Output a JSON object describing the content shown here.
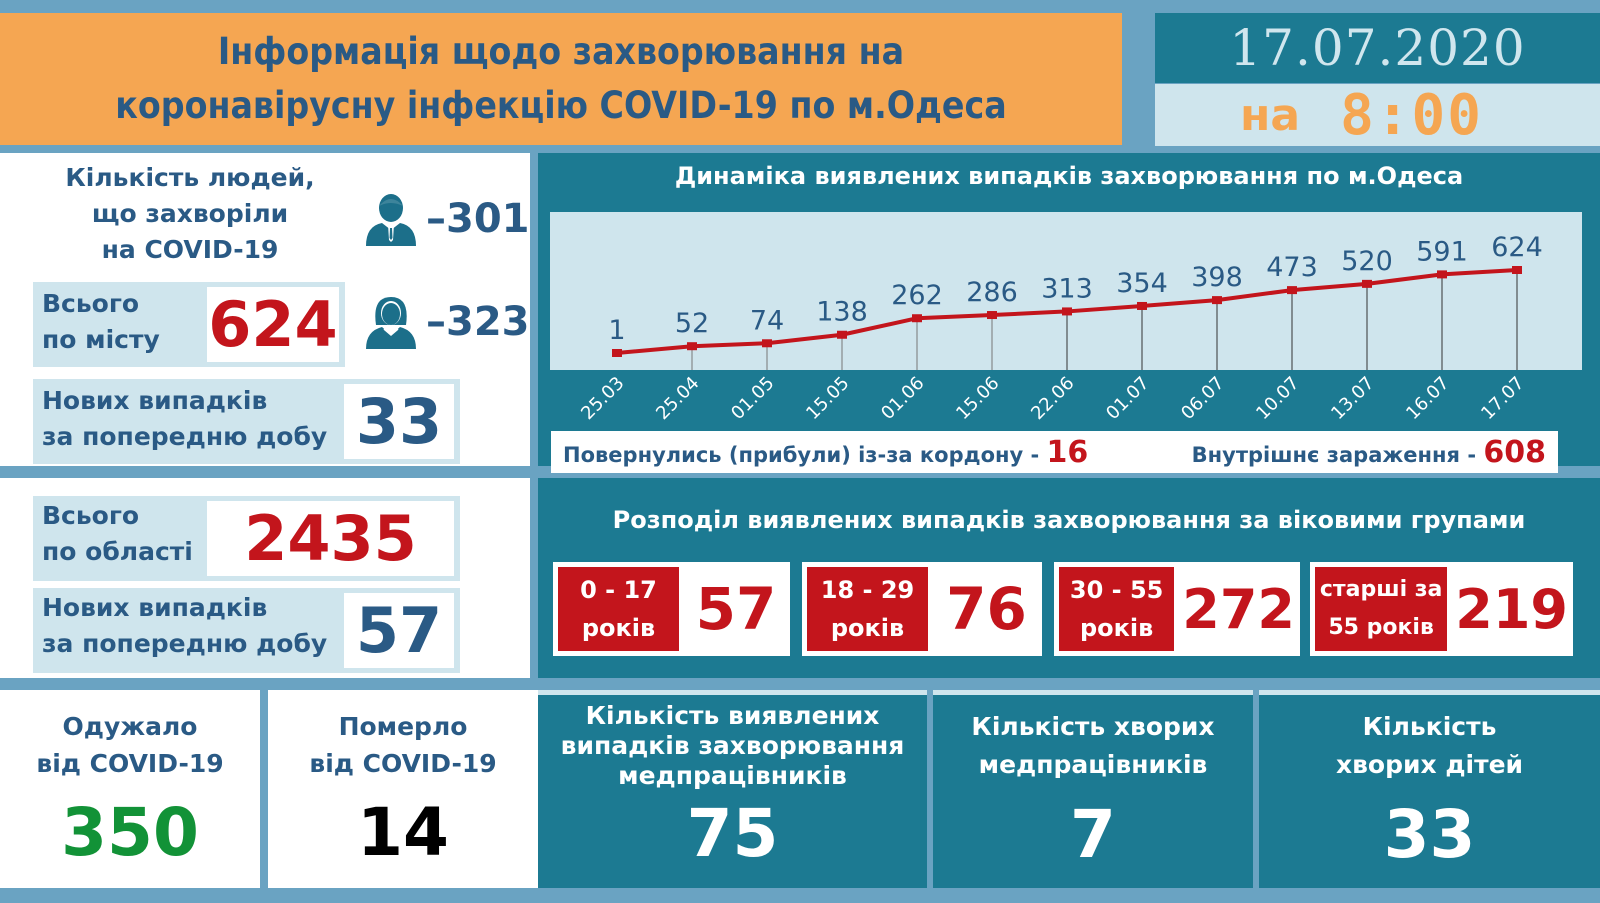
{
  "header": {
    "title_line1": "Інформація щодо захворювання на",
    "title_line2": "коронавірусну інфекцію COVID-19 по м.Одеса",
    "date": "17.07.2020",
    "time_prefix": "на",
    "time": "8:00"
  },
  "city": {
    "sick_title_line1": "Кількість людей,",
    "sick_title_line2": "що захворіли",
    "sick_title_line3": "на COVID-19",
    "male_icon": "male-person-icon",
    "male_count": "–301",
    "female_icon": "female-person-icon",
    "female_count": "–323",
    "total_label_line1": "Всього",
    "total_label_line2": "по місту",
    "total_value": "624",
    "new_label_line1": "Нових випадків",
    "new_label_line2": "за попередню добу",
    "new_value": "33"
  },
  "region": {
    "total_label_line1": "Всього",
    "total_label_line2": "по області",
    "total_value": "2435",
    "new_label_line1": "Нових випадків",
    "new_label_line2": "за попередню добу",
    "new_value": "57"
  },
  "recovered": {
    "label_line1": "Одужало",
    "label_line2": "від COVID-19",
    "value": "350"
  },
  "deceased": {
    "label_line1": "Померло",
    "label_line2": "від COVID-19",
    "value": "14"
  },
  "chart": {
    "title": "Динаміка виявлених випадків захворювання по м.Одеса",
    "border_label": "Повернулись (прибули) із-за кордону -",
    "border_value": "16",
    "internal_label": "Внутрішнє зараження  -",
    "internal_value": "608"
  },
  "chart_data": {
    "type": "line",
    "title": "Динаміка виявлених випадків захворювання по м.Одеса",
    "categories": [
      "25.03",
      "25.04",
      "01.05",
      "15.05",
      "01.06",
      "15.06",
      "22.06",
      "01.07",
      "06.07",
      "10.07",
      "13.07",
      "16.07",
      "17.07"
    ],
    "values": [
      1,
      52,
      74,
      138,
      262,
      286,
      313,
      354,
      398,
      473,
      520,
      591,
      624
    ],
    "xlabel": "",
    "ylabel": "",
    "ylim": [
      0,
      1200
    ],
    "grid": false,
    "data_labels": true,
    "line_color": "#c3151c",
    "x_tick_rotation": -45
  },
  "age_groups": {
    "title": "Розподіл виявлених випадків захворювання за віковими групами",
    "groups": [
      {
        "label_line1": "0 - 17",
        "label_line2": "років",
        "value": "57"
      },
      {
        "label_line1": "18 - 29",
        "label_line2": "років",
        "value": "76"
      },
      {
        "label_line1": "30 - 55",
        "label_line2": "років",
        "value": "272"
      },
      {
        "label_line1": "старші за",
        "label_line2": "55 років",
        "value": "219"
      }
    ]
  },
  "medical": {
    "cases_label_line1": "Кількість виявлених",
    "cases_label_line2": "випадків захворювання",
    "cases_label_line3": "медпрацівників",
    "cases_value": "75",
    "sick_label_line1": "Кількість хворих",
    "sick_label_line2": "медпрацівників",
    "sick_value": "7",
    "children_label_line1": "Кількість",
    "children_label_line2": "хворих дітей",
    "children_value": "33"
  },
  "colors": {
    "header_orange": "#f5a652",
    "teal": "#1c7a92",
    "light_blue": "#cfe5ed",
    "frame_blue": "#6aa3c2",
    "text_blue": "#2a5a85",
    "red": "#c3151c",
    "green": "#129237"
  }
}
